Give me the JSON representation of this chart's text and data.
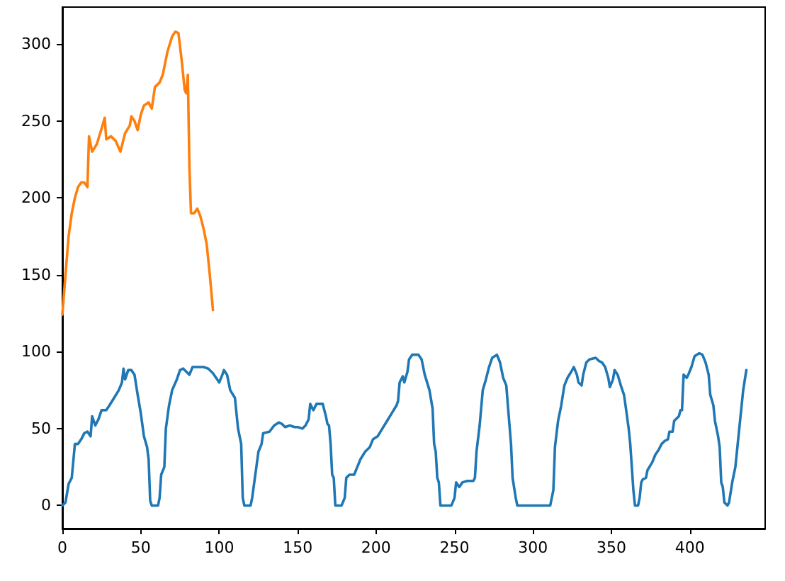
{
  "chart_data": {
    "type": "line",
    "xlim": [
      0,
      448
    ],
    "ylim": [
      -15,
      324
    ],
    "xticks": [
      0,
      50,
      100,
      150,
      200,
      250,
      300,
      350,
      400
    ],
    "yticks": [
      0,
      50,
      100,
      150,
      200,
      250,
      300
    ],
    "grid": false,
    "marker": "none",
    "line_style": "solid",
    "series": [
      {
        "color": "#1f77b4",
        "x": [
          0,
          2,
          4,
          6,
          8,
          10,
          12,
          14,
          16,
          18,
          19,
          21,
          23,
          25,
          28,
          30,
          33,
          36,
          38,
          39,
          40,
          42,
          44,
          46,
          48,
          50,
          52,
          54,
          55,
          56,
          57,
          61,
          62,
          63,
          65,
          66,
          68,
          70,
          73,
          75,
          77,
          79,
          81,
          83,
          86,
          90,
          93,
          96,
          98,
          100,
          102,
          103,
          105,
          107,
          110,
          112,
          114,
          115,
          116,
          120,
          121,
          123,
          125,
          127,
          128,
          132,
          135,
          138,
          140,
          142,
          145,
          148,
          150,
          153,
          155,
          157,
          158,
          160,
          162,
          166,
          168,
          169,
          170,
          171,
          172,
          173,
          174,
          178,
          180,
          181,
          183,
          186,
          188,
          190,
          193,
          196,
          198,
          201,
          204,
          207,
          210,
          213,
          214,
          215,
          217,
          218,
          220,
          221,
          223,
          227,
          229,
          231,
          234,
          236,
          237,
          238,
          239,
          240,
          241,
          248,
          250,
          251,
          253,
          255,
          258,
          262,
          263,
          264,
          266,
          268,
          270,
          272,
          274,
          277,
          279,
          281,
          283,
          284,
          286,
          287,
          289,
          290,
          300,
          311,
          313,
          314,
          316,
          318,
          320,
          322,
          325,
          326,
          328,
          329,
          331,
          332,
          334,
          336,
          340,
          342,
          344,
          346,
          348,
          349,
          351,
          352,
          354,
          356,
          358,
          359,
          361,
          362,
          363,
          364,
          365,
          367,
          368,
          369,
          370,
          372,
          373,
          376,
          378,
          380,
          382,
          384,
          386,
          387,
          389,
          390,
          393,
          394,
          395,
          396,
          398,
          399,
          401,
          403,
          406,
          408,
          410,
          412,
          413,
          415,
          416,
          418,
          419,
          420,
          421,
          422,
          424,
          425,
          427,
          429,
          430,
          432,
          434,
          436
        ],
        "values": [
          0,
          2,
          14,
          18,
          40,
          40,
          43,
          47,
          48,
          45,
          58,
          52,
          56,
          62,
          62,
          65,
          70,
          75,
          80,
          89,
          82,
          88,
          88,
          85,
          72,
          60,
          45,
          38,
          30,
          3,
          0,
          0,
          5,
          20,
          25,
          50,
          65,
          75,
          82,
          88,
          89,
          87,
          85,
          90,
          90,
          90,
          89,
          86,
          83,
          80,
          85,
          88,
          85,
          75,
          70,
          50,
          40,
          5,
          0,
          0,
          5,
          20,
          35,
          40,
          47,
          48,
          52,
          54,
          53,
          51,
          52,
          51,
          51,
          50,
          52,
          56,
          66,
          62,
          66,
          66,
          58,
          53,
          52,
          40,
          20,
          18,
          0,
          0,
          5,
          18,
          20,
          20,
          25,
          30,
          35,
          38,
          43,
          45,
          50,
          55,
          60,
          65,
          68,
          80,
          84,
          80,
          87,
          95,
          98,
          98,
          95,
          85,
          75,
          63,
          40,
          35,
          18,
          15,
          0,
          0,
          5,
          15,
          12,
          15,
          16,
          16,
          18,
          35,
          52,
          75,
          82,
          90,
          96,
          98,
          93,
          83,
          78,
          65,
          40,
          18,
          5,
          0,
          0,
          0,
          10,
          38,
          55,
          65,
          78,
          83,
          88,
          90,
          85,
          80,
          78,
          85,
          93,
          95,
          96,
          94,
          93,
          90,
          83,
          77,
          82,
          88,
          85,
          78,
          72,
          65,
          50,
          40,
          25,
          10,
          0,
          0,
          5,
          15,
          17,
          18,
          23,
          28,
          33,
          36,
          40,
          42,
          43,
          48,
          48,
          55,
          58,
          62,
          62,
          85,
          83,
          85,
          90,
          97,
          99,
          98,
          93,
          85,
          72,
          65,
          55,
          45,
          38,
          15,
          12,
          2,
          0,
          2,
          15,
          25,
          35,
          55,
          75,
          88
        ]
      },
      {
        "color": "#ff7f0e",
        "x": [
          0,
          2,
          4,
          6,
          8,
          10,
          12,
          14,
          16,
          17,
          19,
          22,
          25,
          27,
          28,
          31,
          34,
          37,
          40,
          43,
          44,
          46,
          48,
          50,
          52,
          55,
          57,
          59,
          62,
          64,
          67,
          70,
          72,
          74,
          76,
          78,
          79,
          80,
          81,
          82,
          84,
          86,
          88,
          90,
          92,
          94,
          96
        ],
        "values": [
          124,
          150,
          175,
          190,
          200,
          207,
          210,
          210,
          207,
          240,
          230,
          235,
          245,
          252,
          238,
          240,
          237,
          230,
          242,
          247,
          253,
          250,
          244,
          254,
          260,
          262,
          258,
          272,
          275,
          280,
          295,
          305,
          308,
          307,
          290,
          270,
          268,
          280,
          220,
          190,
          190,
          193,
          188,
          180,
          170,
          150,
          127
        ]
      }
    ]
  }
}
